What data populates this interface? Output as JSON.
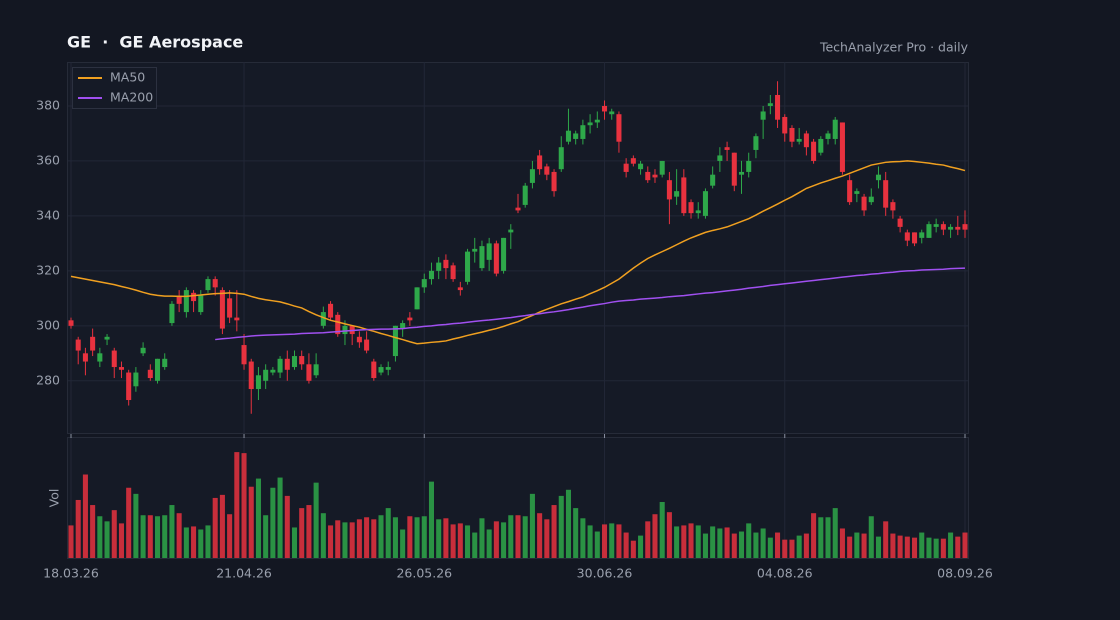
{
  "chart_data": {
    "type": "candlestick",
    "title": "GE  ·  GE Aerospace",
    "subtitle": "TechAnalyzer Pro · daily",
    "volume_label": "Vol",
    "up_color": "#2ea84a",
    "down_color": "#e8323f",
    "grid": true,
    "legend": "upper left",
    "ylim": [
      261,
      396
    ],
    "yticks": [
      280,
      300,
      320,
      340,
      360,
      380
    ],
    "vol_ylim": [
      0,
      110
    ],
    "xticks": [
      {
        "value": "2026-03-18",
        "label": "18.03.26"
      },
      {
        "value": "2026-04-21",
        "label": "21.04.26"
      },
      {
        "value": "2026-05-26",
        "label": "26.05.26"
      },
      {
        "value": "2026-06-30",
        "label": "30.06.26"
      },
      {
        "value": "2026-08-04",
        "label": "04.08.26"
      },
      {
        "value": "2026-09-08",
        "label": "08.09.26"
      }
    ],
    "x": [
      "2026-03-18",
      "2026-03-19",
      "2026-03-20",
      "2026-03-23",
      "2026-03-24",
      "2026-03-25",
      "2026-03-26",
      "2026-03-27",
      "2026-03-30",
      "2026-03-31",
      "2026-04-01",
      "2026-04-02",
      "2026-04-03",
      "2026-04-06",
      "2026-04-07",
      "2026-04-08",
      "2026-04-09",
      "2026-04-10",
      "2026-04-13",
      "2026-04-14",
      "2026-04-15",
      "2026-04-16",
      "2026-04-17",
      "2026-04-20",
      "2026-04-21",
      "2026-04-22",
      "2026-04-23",
      "2026-04-24",
      "2026-04-27",
      "2026-04-28",
      "2026-04-29",
      "2026-04-30",
      "2026-05-01",
      "2026-05-04",
      "2026-05-05",
      "2026-05-06",
      "2026-05-07",
      "2026-05-08",
      "2026-05-11",
      "2026-05-12",
      "2026-05-13",
      "2026-05-14",
      "2026-05-15",
      "2026-05-18",
      "2026-05-19",
      "2026-05-20",
      "2026-05-21",
      "2026-05-22",
      "2026-05-25",
      "2026-05-26",
      "2026-05-27",
      "2026-05-28",
      "2026-05-29",
      "2026-06-01",
      "2026-06-02",
      "2026-06-03",
      "2026-06-04",
      "2026-06-05",
      "2026-06-08",
      "2026-06-09",
      "2026-06-10",
      "2026-06-11",
      "2026-06-12",
      "2026-06-15",
      "2026-06-16",
      "2026-06-17",
      "2026-06-18",
      "2026-06-19",
      "2026-06-22",
      "2026-06-23",
      "2026-06-24",
      "2026-06-25",
      "2026-06-26",
      "2026-06-29",
      "2026-06-30",
      "2026-07-01",
      "2026-07-02",
      "2026-07-03",
      "2026-07-06",
      "2026-07-07",
      "2026-07-08",
      "2026-07-09",
      "2026-07-10",
      "2026-07-13",
      "2026-07-14",
      "2026-07-15",
      "2026-07-16",
      "2026-07-17",
      "2026-07-20",
      "2026-07-21",
      "2026-07-22",
      "2026-07-23",
      "2026-07-24",
      "2026-07-27",
      "2026-07-28",
      "2026-07-29",
      "2026-07-30",
      "2026-07-31",
      "2026-08-03",
      "2026-08-04",
      "2026-08-05",
      "2026-08-06",
      "2026-08-07",
      "2026-08-10",
      "2026-08-11",
      "2026-08-12",
      "2026-08-13",
      "2026-08-14",
      "2026-08-17",
      "2026-08-18",
      "2026-08-19",
      "2026-08-20",
      "2026-08-21",
      "2026-08-24",
      "2026-08-25",
      "2026-08-26",
      "2026-08-27",
      "2026-08-28",
      "2026-08-31",
      "2026-09-01",
      "2026-09-02",
      "2026-09-03",
      "2026-09-04",
      "2026-09-07",
      "2026-09-08"
    ],
    "open": [
      302,
      295,
      290,
      296,
      287,
      295,
      291,
      285,
      283,
      278,
      290,
      284,
      280,
      285,
      301,
      311,
      305,
      312,
      305,
      313,
      317,
      313,
      310,
      303,
      293,
      287,
      277,
      280,
      283,
      283,
      288,
      285,
      289,
      286,
      282,
      300,
      308,
      304,
      297,
      300,
      296,
      295,
      287,
      283,
      284,
      289,
      299,
      303,
      306,
      314,
      317,
      320,
      324,
      322,
      314,
      316,
      327,
      321,
      324,
      330,
      320,
      334,
      343,
      344,
      352,
      362,
      358,
      356,
      357,
      367,
      368,
      368,
      373,
      374,
      380,
      377,
      377,
      359,
      361,
      357,
      356,
      355,
      355,
      353,
      347,
      354,
      345,
      341,
      340,
      351,
      360,
      365,
      363,
      355,
      356,
      364,
      375,
      380,
      384,
      376,
      372,
      367,
      370,
      367,
      363,
      368,
      368,
      374,
      353,
      348,
      347,
      345,
      353,
      353,
      345,
      339,
      334,
      334,
      332,
      332,
      336,
      337,
      335,
      336,
      337
    ],
    "high": [
      303,
      296,
      292,
      299,
      292,
      297,
      292,
      287,
      284,
      285,
      294,
      286,
      288,
      290,
      309,
      313,
      314,
      313,
      313,
      318,
      318,
      314,
      313,
      313,
      297,
      288,
      285,
      286,
      285,
      289,
      291,
      291,
      291,
      290,
      290,
      307,
      309,
      305,
      302,
      300,
      298,
      298,
      288,
      286,
      287,
      300,
      302,
      305,
      314,
      319,
      323,
      325,
      326,
      323,
      316,
      328,
      332,
      331,
      332,
      331,
      332,
      337,
      348,
      352,
      360,
      364,
      359,
      357,
      369,
      379,
      371,
      375,
      377,
      378,
      382,
      379,
      378,
      361,
      362,
      360,
      358,
      357,
      360,
      356,
      357,
      357,
      346,
      345,
      350,
      358,
      365,
      367,
      363,
      360,
      363,
      370,
      380,
      384,
      389,
      377,
      373,
      372,
      371,
      368,
      369,
      371,
      376,
      374,
      355,
      350,
      348,
      350,
      358,
      356,
      346,
      340,
      335,
      334,
      335,
      338,
      339,
      338,
      337,
      340,
      342
    ],
    "low": [
      299,
      286,
      282,
      289,
      285,
      293,
      281,
      281,
      271,
      276,
      289,
      280,
      279,
      284,
      300,
      305,
      303,
      305,
      304,
      312,
      311,
      297,
      301,
      298,
      284,
      268,
      273,
      277,
      282,
      281,
      280,
      284,
      284,
      279,
      281,
      299,
      302,
      296,
      293,
      293,
      292,
      290,
      280,
      282,
      282,
      287,
      296,
      300,
      306,
      312,
      315,
      317,
      317,
      316,
      311,
      315,
      323,
      320,
      320,
      318,
      319,
      328,
      341,
      343,
      350,
      355,
      353,
      347,
      356,
      366,
      366,
      366,
      370,
      372,
      375,
      375,
      363,
      354,
      358,
      355,
      352,
      352,
      354,
      337,
      344,
      340,
      339,
      339,
      339,
      350,
      356,
      360,
      349,
      348,
      354,
      361,
      368,
      377,
      372,
      367,
      365,
      366,
      362,
      359,
      362,
      366,
      366,
      355,
      344,
      345,
      340,
      344,
      350,
      340,
      339,
      334,
      329,
      329,
      330,
      332,
      334,
      333,
      332,
      333,
      332
    ],
    "close": [
      300,
      291,
      287,
      291,
      290,
      296,
      285,
      284,
      273,
      283,
      292,
      281,
      288,
      288,
      308,
      308,
      313,
      309,
      311,
      317,
      314,
      299,
      303,
      302,
      286,
      277,
      282,
      284,
      284,
      288,
      284,
      289,
      286,
      280,
      286,
      305,
      303,
      297,
      300,
      297,
      294,
      291,
      281,
      285,
      285,
      300,
      301,
      302,
      314,
      317,
      320,
      323,
      321,
      317,
      313,
      327,
      328,
      329,
      330,
      319,
      332,
      335,
      342,
      351,
      357,
      357,
      355,
      349,
      365,
      371,
      370,
      373,
      374,
      375,
      378,
      378,
      367,
      356,
      359,
      359,
      353,
      354,
      360,
      346,
      349,
      341,
      341,
      342,
      349,
      355,
      362,
      364,
      351,
      356,
      360,
      369,
      378,
      381,
      375,
      370,
      367,
      368,
      365,
      360,
      368,
      370,
      375,
      356,
      345,
      349,
      342,
      347,
      355,
      343,
      342,
      336,
      331,
      330,
      334,
      337,
      337,
      335,
      336,
      335,
      335
    ],
    "volume": [
      32,
      57,
      82,
      52,
      41,
      36,
      47,
      34,
      69,
      63,
      42,
      42,
      41,
      42,
      52,
      44,
      30,
      31,
      28,
      32,
      59,
      62,
      43,
      104,
      103,
      70,
      78,
      42,
      69,
      79,
      61,
      30,
      49,
      52,
      74,
      44,
      32,
      37,
      35,
      35,
      38,
      40,
      38,
      42,
      49,
      40,
      28,
      41,
      40,
      41,
      75,
      38,
      39,
      33,
      34,
      32,
      25,
      39,
      28,
      36,
      35,
      42,
      42,
      41,
      63,
      44,
      38,
      52,
      61,
      67,
      49,
      39,
      32,
      26,
      33,
      34,
      33,
      25,
      17,
      22,
      36,
      43,
      55,
      45,
      31,
      32,
      34,
      32,
      24,
      31,
      29,
      30,
      24,
      26,
      34,
      25,
      29,
      20,
      25,
      18,
      18,
      22,
      24,
      44,
      40,
      40,
      49,
      29,
      21,
      25,
      24,
      41,
      21,
      36,
      24,
      22,
      21,
      20,
      25,
      20,
      19,
      19,
      25,
      21,
      25
    ],
    "series": [
      {
        "name": "MA50",
        "color": "#f0a020",
        "values": [
          318.0,
          317.5,
          317.0,
          316.5,
          316.0,
          315.5,
          315.0,
          314.3,
          313.7,
          313.0,
          312.2,
          311.5,
          311.1,
          310.8,
          310.8,
          310.7,
          310.7,
          311.0,
          311.2,
          311.5,
          311.7,
          311.8,
          312.0,
          311.8,
          311.5,
          310.7,
          310.0,
          309.5,
          309.1,
          308.7,
          308.0,
          307.2,
          306.5,
          305.2,
          304.0,
          303.0,
          302.0,
          301.4,
          300.7,
          300.1,
          299.5,
          298.7,
          298.0,
          297.2,
          296.5,
          295.7,
          295.0,
          294.2,
          293.5,
          293.7,
          294.0,
          294.2,
          294.5,
          295.2,
          295.8,
          296.5,
          297.1,
          297.7,
          298.4,
          299.0,
          299.8,
          300.7,
          301.5,
          302.7,
          303.8,
          305.0,
          306.0,
          307.0,
          308.0,
          308.8,
          309.7,
          310.5,
          311.7,
          312.8,
          314.0,
          315.5,
          317.0,
          319.0,
          321.0,
          322.8,
          324.5,
          325.8,
          327.0,
          328.2,
          329.5,
          330.8,
          332.0,
          333.0,
          334.0,
          334.7,
          335.3,
          336.0,
          337.0,
          338.0,
          339.0,
          340.3,
          341.7,
          343.0,
          344.3,
          345.7,
          347.0,
          348.5,
          350.0,
          351.0,
          352.0,
          352.8,
          353.7,
          354.5,
          355.5,
          356.5,
          357.5,
          358.5,
          359.0,
          359.5,
          359.7,
          359.8,
          360.0,
          359.8,
          359.5,
          359.2,
          358.8,
          358.5,
          357.8,
          357.2,
          356.5
        ]
      },
      {
        "name": "MA200",
        "color": "#a050f0",
        "values": [
          null,
          null,
          null,
          null,
          null,
          null,
          null,
          null,
          null,
          null,
          null,
          null,
          null,
          null,
          null,
          null,
          null,
          null,
          null,
          null,
          295.0,
          295.3,
          295.5,
          295.8,
          296.0,
          296.3,
          296.5,
          296.6,
          296.7,
          296.8,
          296.9,
          297.0,
          297.2,
          297.3,
          297.4,
          297.5,
          297.7,
          297.9,
          298.1,
          298.3,
          298.5,
          298.6,
          298.7,
          298.8,
          298.8,
          298.9,
          299.0,
          299.3,
          299.5,
          299.8,
          300.0,
          300.3,
          300.5,
          300.8,
          301.0,
          301.3,
          301.6,
          301.9,
          302.1,
          302.4,
          302.7,
          303.0,
          303.4,
          303.7,
          304.1,
          304.4,
          304.8,
          305.1,
          305.5,
          305.9,
          306.4,
          306.8,
          307.3,
          307.7,
          308.1,
          308.6,
          309.0,
          309.2,
          309.4,
          309.7,
          309.9,
          310.1,
          310.3,
          310.6,
          310.8,
          311.0,
          311.3,
          311.6,
          311.9,
          312.1,
          312.4,
          312.7,
          313.0,
          313.3,
          313.7,
          314.0,
          314.3,
          314.7,
          315.0,
          315.3,
          315.6,
          315.9,
          316.2,
          316.5,
          316.8,
          317.1,
          317.4,
          317.7,
          318.0,
          318.3,
          318.5,
          318.8,
          319.0,
          319.3,
          319.5,
          319.8,
          320.0,
          320.1,
          320.3,
          320.4,
          320.5,
          320.6,
          320.8,
          320.9,
          321.0
        ]
      }
    ]
  }
}
